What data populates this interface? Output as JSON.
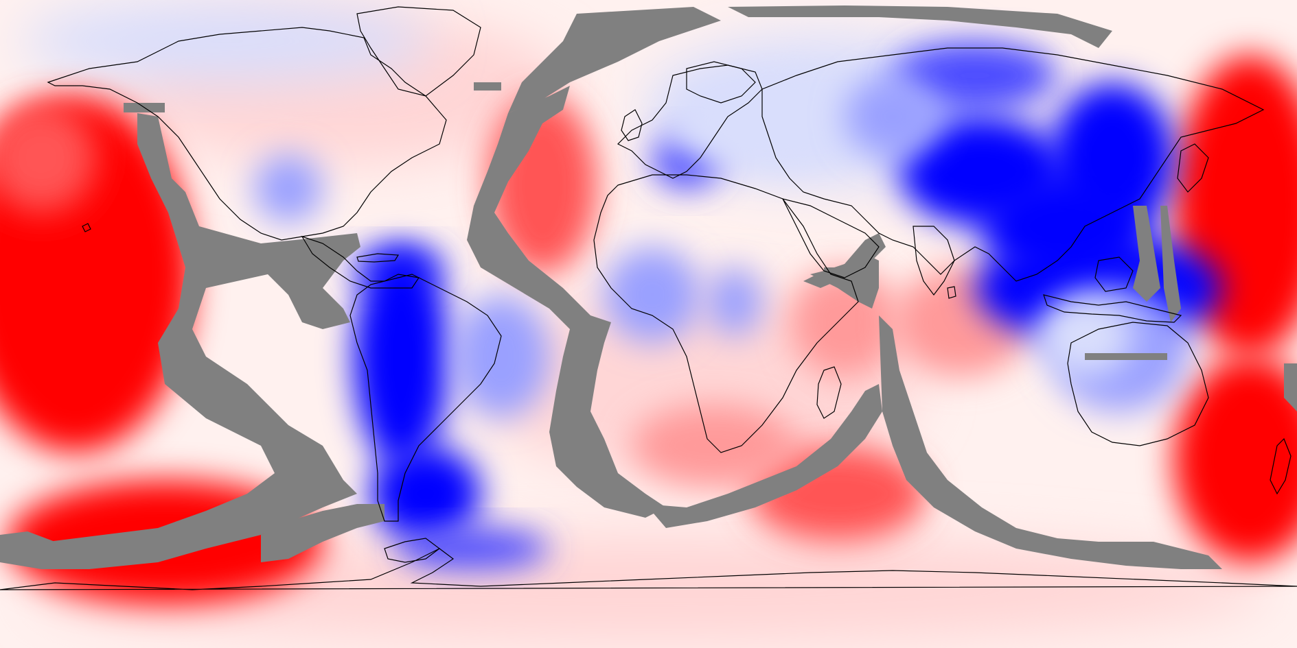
{
  "map": {
    "projection": "equirectangular",
    "longitude_range": [
      -180,
      180
    ],
    "latitude_range": [
      -90,
      90
    ],
    "base_background_color": "#fff1ef",
    "no_data_color": "#808080",
    "coastline_color": "#000000",
    "color_scale": {
      "negative_extreme": "#0000ff",
      "negative_strong": "#4b4bff",
      "negative_mid": "#9aa0ff",
      "negative_weak": "#d9defc",
      "neutral": "#ffffff",
      "positive_weak": "#ffd6d6",
      "positive_mid": "#ff9a9a",
      "positive_strong": "#ff5555",
      "positive_extreme": "#ff0000"
    },
    "layers": [
      "scalar-field",
      "no-data-mask",
      "coastlines"
    ]
  }
}
